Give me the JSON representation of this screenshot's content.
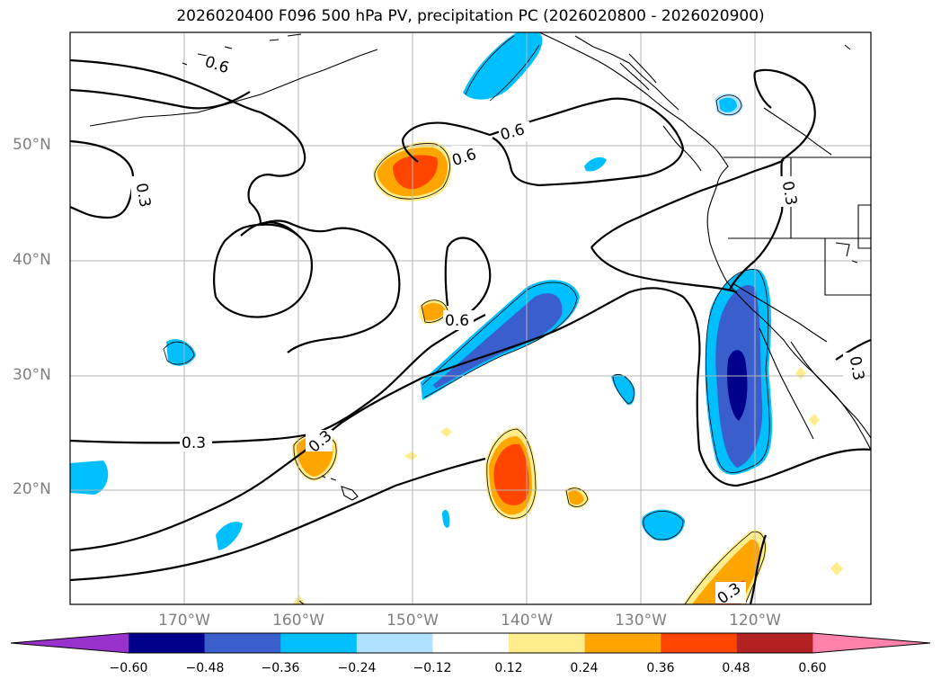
{
  "title": "2026020400 F096 500 hPa PV, precipitation PC (2026020800 - 2026020900)",
  "lat_labels": [
    "50°N",
    "40°N",
    "30°N",
    "20°N"
  ],
  "lon_labels": [
    "170°W",
    "160°W",
    "150°W",
    "140°W",
    "130°W",
    "120°W"
  ],
  "contour_labels": {
    "c1": "0.6",
    "c2": "0.3",
    "c3": "0.6",
    "c4": "0.6",
    "c5": "0.6",
    "c6": "0.3",
    "c7": "0.3",
    "c8": "0.3",
    "c9": "0.3",
    "c10": "0.3"
  },
  "colorbar": {
    "ticks": [
      "−0.60",
      "−0.48",
      "−0.36",
      "−0.24",
      "−0.12",
      "0.12",
      "0.24",
      "0.36",
      "0.48",
      "0.60"
    ],
    "colors": [
      "#9932cc",
      "#00008b",
      "#3a5fcd",
      "#00bfff",
      "#b0e2ff",
      "#ffffff",
      "#ffec8b",
      "#ffa500",
      "#ff4500",
      "#b22222",
      "#ff82ab"
    ]
  }
}
